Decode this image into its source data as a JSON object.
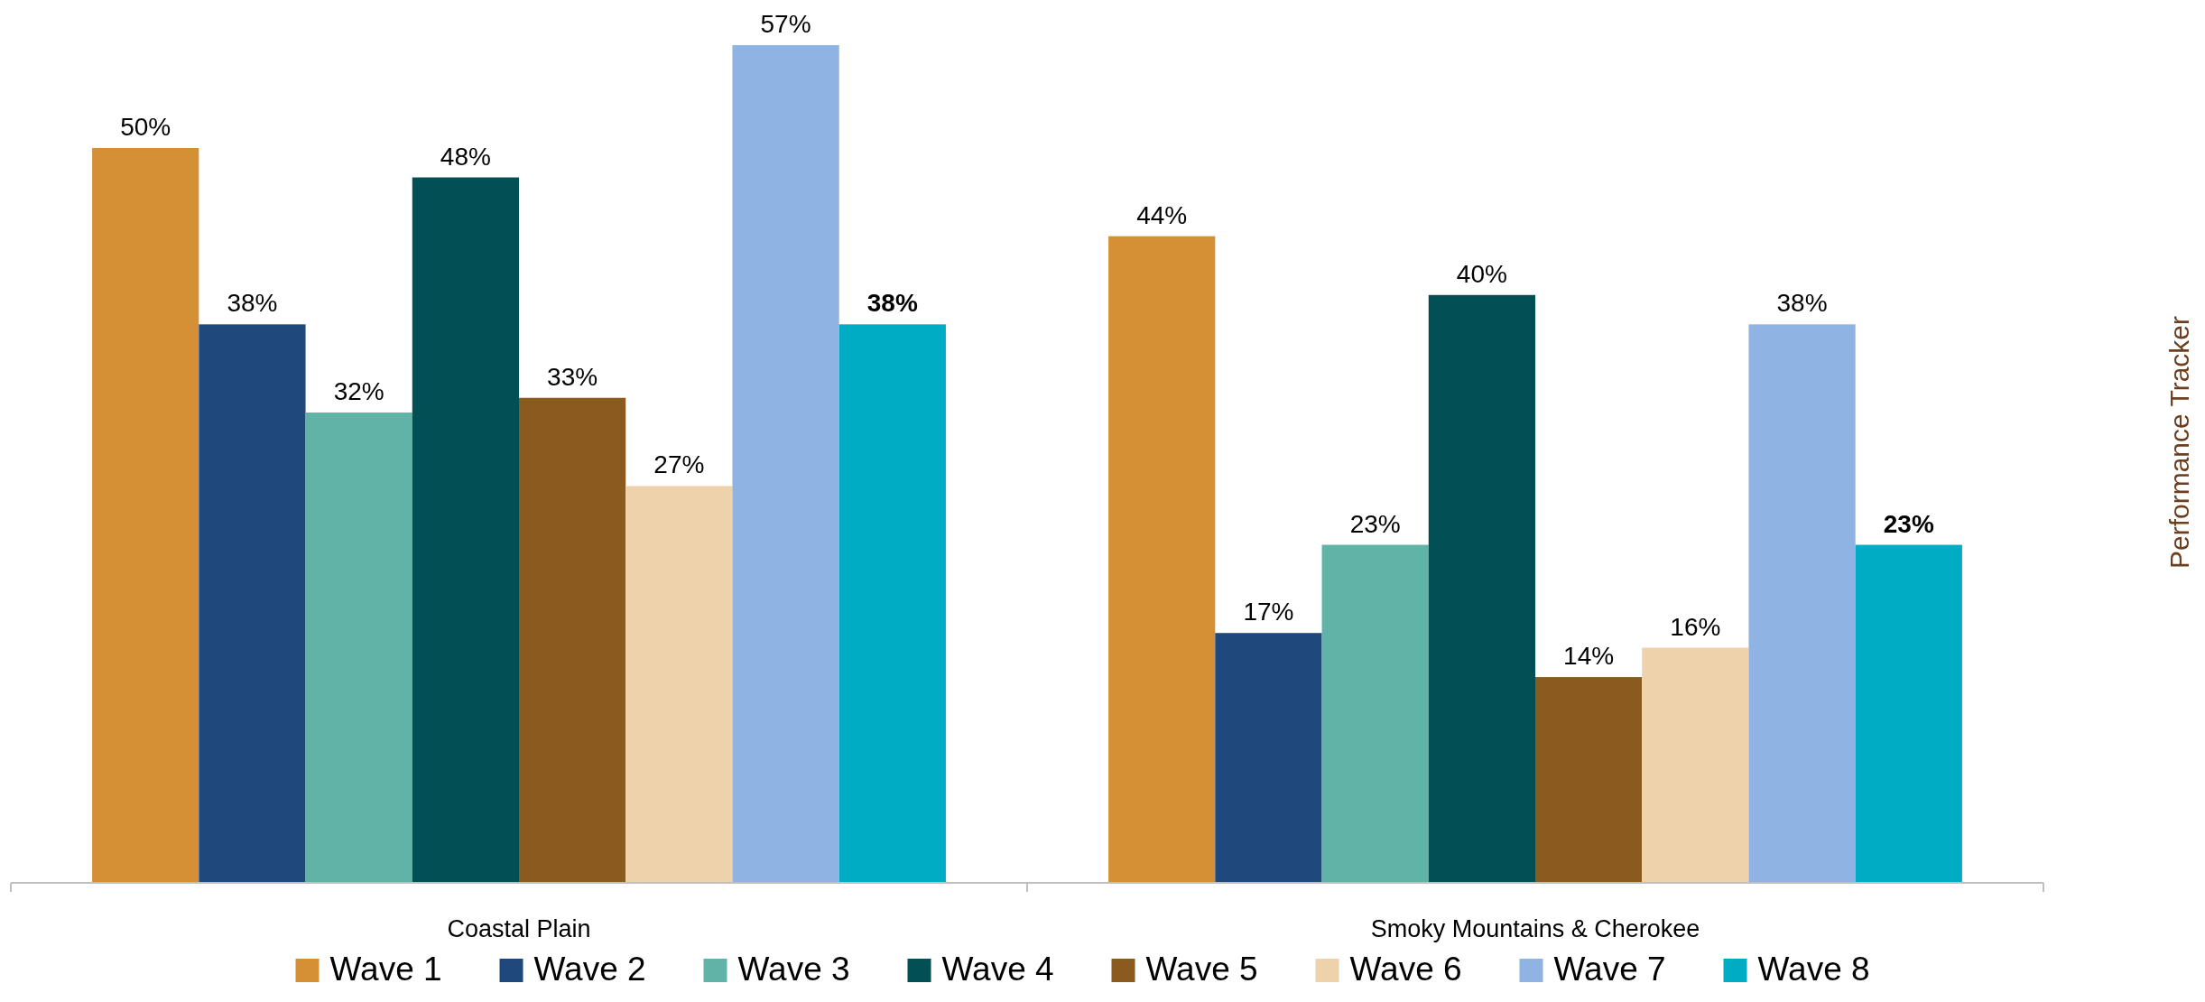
{
  "chart_data": {
    "type": "bar",
    "categories": [
      "Coastal Plain",
      "Smoky Mountains & Cherokee"
    ],
    "series": [
      {
        "name": "Wave 1",
        "color": "#d59035",
        "values": [
          50,
          44
        ],
        "value_labels": [
          "50%",
          "44%"
        ]
      },
      {
        "name": "Wave 2",
        "color": "#1f497d",
        "values": [
          38,
          17
        ],
        "value_labels": [
          "38%",
          "17%"
        ]
      },
      {
        "name": "Wave 3",
        "color": "#60b3a7",
        "values": [
          32,
          23
        ],
        "value_labels": [
          "32%",
          "23%"
        ]
      },
      {
        "name": "Wave 4",
        "color": "#034f56",
        "values": [
          48,
          40
        ],
        "value_labels": [
          "48%",
          "40%"
        ]
      },
      {
        "name": "Wave 5",
        "color": "#8b5a1e",
        "values": [
          33,
          14
        ],
        "value_labels": [
          "33%",
          "14%"
        ]
      },
      {
        "name": "Wave 6",
        "color": "#eed2ac",
        "values": [
          27,
          16
        ],
        "value_labels": [
          "27%",
          "16%"
        ]
      },
      {
        "name": "Wave 7",
        "color": "#8fb4e3",
        "values": [
          57,
          38
        ],
        "value_labels": [
          "57%",
          "38%"
        ]
      },
      {
        "name": "Wave 8",
        "color": "#00acc4",
        "values": [
          38,
          23
        ],
        "value_labels": [
          "38%",
          "23%"
        ]
      }
    ],
    "legend": "bottom",
    "annotations": [
      "Performance Tracker"
    ]
  }
}
